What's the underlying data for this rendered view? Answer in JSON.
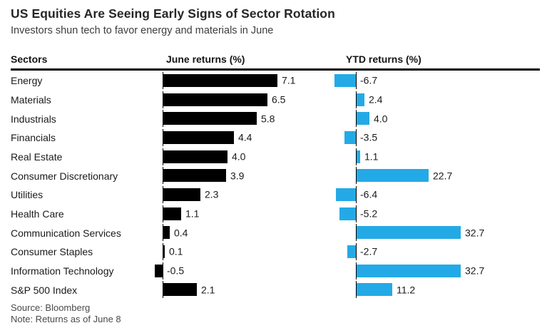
{
  "header": {
    "title": "US Equities Are Seeing Early Signs of Sector Rotation",
    "subtitle": "Investors shun tech to favor energy and materials in June"
  },
  "columns": {
    "sectors": "Sectors",
    "june": "June returns (%)",
    "ytd": "YTD returns (%)"
  },
  "colors": {
    "june_bar": "#000000",
    "ytd_bar": "#23AAE6",
    "rule": "#000000",
    "text": "#1a1a1a",
    "footer_text": "#4a4a4a"
  },
  "chart_data": {
    "type": "bar",
    "orientation": "horizontal",
    "title": "US Equities Are Seeing Early Signs of Sector Rotation",
    "subtitle": "Investors shun tech to favor energy and materials in June",
    "grid": false,
    "legend": false,
    "value_labels": true,
    "categories": [
      "Energy",
      "Materials",
      "Industrials",
      "Financials",
      "Real Estate",
      "Consumer Discretionary",
      "Utilities",
      "Health Care",
      "Communication Services",
      "Consumer Staples",
      "Information Technology",
      "S&P 500 Index"
    ],
    "series": [
      {
        "name": "June returns (%)",
        "color": "#000000",
        "xlim": [
          -1,
          10.5
        ],
        "values": [
          7.1,
          6.5,
          5.8,
          4.4,
          4.0,
          3.9,
          2.3,
          1.1,
          0.4,
          0.1,
          -0.5,
          2.1
        ]
      },
      {
        "name": "YTD returns (%)",
        "color": "#23AAE6",
        "xlim": [
          -7,
          57
        ],
        "values": [
          -6.7,
          2.4,
          4.0,
          -3.5,
          1.1,
          22.7,
          -6.4,
          -5.2,
          32.7,
          -2.7,
          32.7,
          11.2
        ]
      }
    ]
  },
  "footer": {
    "source": "Source: Bloomberg",
    "note": "Note: Returns as of June 8"
  }
}
